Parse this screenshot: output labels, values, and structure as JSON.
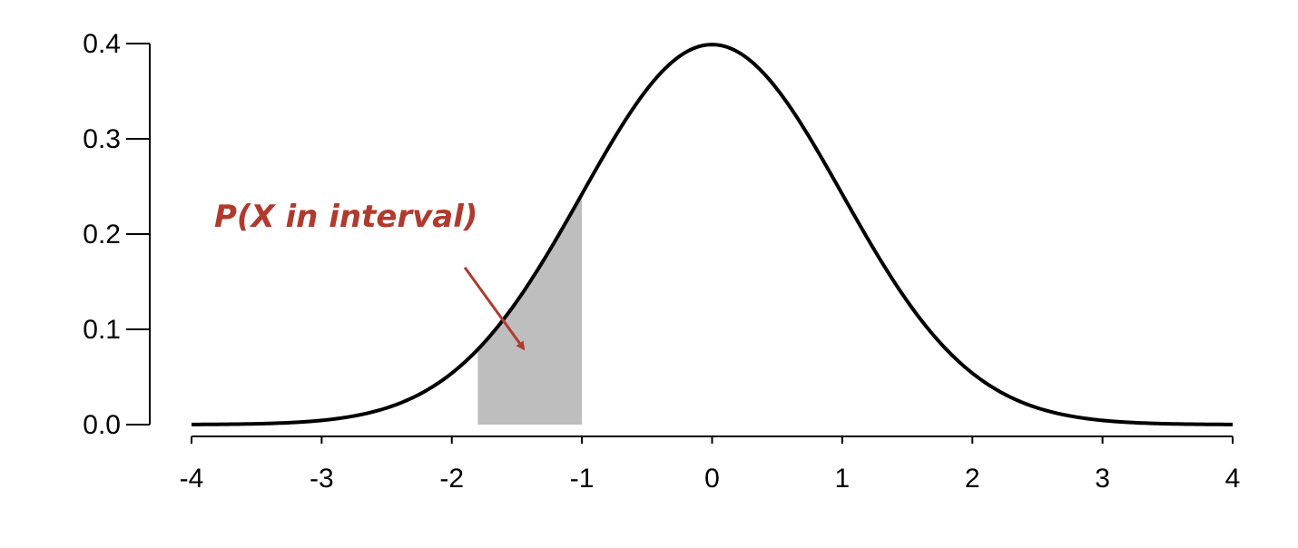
{
  "chart_data": {
    "type": "area",
    "title": "",
    "xlabel": "",
    "ylabel": "",
    "xlim": [
      -4,
      4
    ],
    "ylim": [
      0,
      0.4
    ],
    "x_ticks": [
      {
        "value": -4,
        "label": "-4"
      },
      {
        "value": -3,
        "label": "-3"
      },
      {
        "value": -2,
        "label": "-2"
      },
      {
        "value": -1,
        "label": "-1"
      },
      {
        "value": 0,
        "label": "0"
      },
      {
        "value": 1,
        "label": "1"
      },
      {
        "value": 2,
        "label": "2"
      },
      {
        "value": 3,
        "label": "3"
      },
      {
        "value": 4,
        "label": "4"
      }
    ],
    "y_ticks": [
      {
        "value": 0.0,
        "label": "0.0"
      },
      {
        "value": 0.1,
        "label": "0.1"
      },
      {
        "value": 0.2,
        "label": "0.2"
      },
      {
        "value": 0.3,
        "label": "0.3"
      },
      {
        "value": 0.4,
        "label": "0.4"
      }
    ],
    "series": [
      {
        "distribution": "standard normal density",
        "mean": 0,
        "sd": 1,
        "color": "#000000"
      }
    ],
    "shaded_interval": {
      "from": -1.8,
      "to": -1.0,
      "color": "#bebebe"
    },
    "annotation": {
      "text": "P(X in interval)",
      "color": "#b03a2e",
      "arrow_from": {
        "x": -1.9,
        "y": 0.165
      },
      "arrow_to": {
        "x": -1.45,
        "y": 0.08
      }
    },
    "grid": false,
    "legend": "none"
  }
}
